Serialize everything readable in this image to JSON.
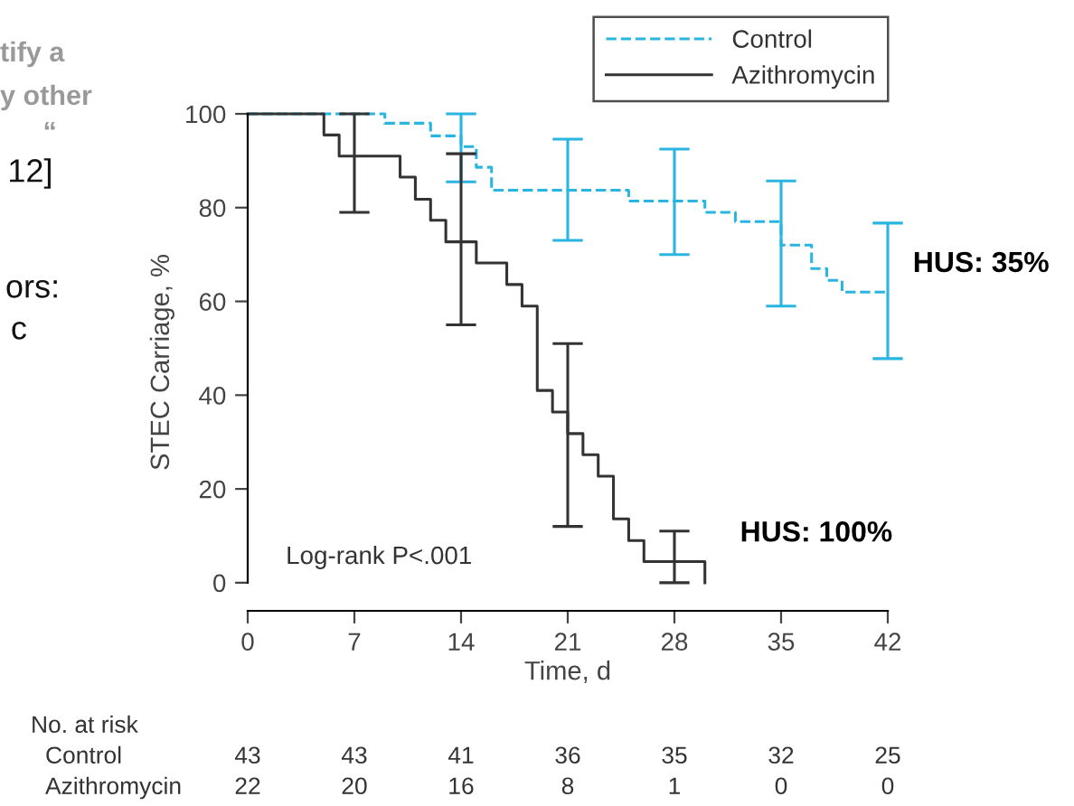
{
  "chart_data": {
    "type": "step",
    "xlabel": "Time, d",
    "ylabel": "STEC Carriage, %",
    "xlim": [
      0,
      42
    ],
    "ylim": [
      -6,
      100
    ],
    "xticks": [
      0,
      7,
      14,
      21,
      28,
      35,
      42
    ],
    "yticks": [
      0,
      20,
      40,
      60,
      80,
      100
    ],
    "grid": false,
    "legend": "top right",
    "series": [
      {
        "name": "Control",
        "color": "#29b5e0",
        "line_style": "dashed",
        "x": [
          0,
          9,
          12,
          14,
          15,
          16,
          21,
          25,
          28,
          30,
          32,
          35,
          37,
          38,
          39,
          42
        ],
        "values": [
          100,
          98,
          95.3,
          93,
          88.6,
          83.7,
          83.7,
          81.4,
          81.4,
          79,
          77,
          72,
          67,
          64.5,
          62,
          62
        ],
        "errors": [
          null,
          null,
          null,
          [
            85.5,
            100
          ],
          null,
          null,
          [
            73,
            94.6
          ],
          null,
          [
            70,
            92.5
          ],
          null,
          null,
          [
            59,
            85.7
          ],
          null,
          null,
          null,
          [
            47.8,
            76.7
          ]
        ]
      },
      {
        "name": "Azithromycin",
        "color": "#333333",
        "line_style": "solid",
        "x": [
          0,
          5,
          6,
          7,
          10,
          11,
          12,
          13,
          14,
          15,
          17,
          18,
          19,
          20,
          21,
          22,
          23,
          24,
          25,
          26,
          28,
          30
        ],
        "values": [
          100,
          95.5,
          91,
          91,
          86.5,
          81.8,
          77.3,
          72.7,
          72.7,
          68.2,
          63.6,
          59,
          41,
          36.4,
          31.8,
          27.3,
          22.7,
          13.6,
          9,
          4.5,
          4.5,
          0
        ],
        "errors": [
          null,
          null,
          null,
          [
            79,
            100
          ],
          null,
          null,
          null,
          null,
          [
            55,
            91.5
          ],
          null,
          null,
          null,
          null,
          null,
          [
            12,
            51
          ],
          null,
          null,
          null,
          null,
          null,
          [
            0,
            11
          ],
          null
        ]
      }
    ],
    "annotations": [
      "Log-rank P<.001",
      {
        "text": "HUS: 35%",
        "x": 42,
        "y": 62
      },
      {
        "text": "HUS: 100%",
        "x": 30,
        "y": 4.5
      },
      "No. at risk",
      "Control",
      "43",
      "43",
      "41",
      "36",
      "35",
      "32",
      "25",
      "Azithromycin",
      "22",
      "20",
      "16",
      "8",
      "1",
      "0",
      "0",
      "tify a",
      "y other",
      "“",
      "12]",
      "ors:",
      "c"
    ]
  }
}
